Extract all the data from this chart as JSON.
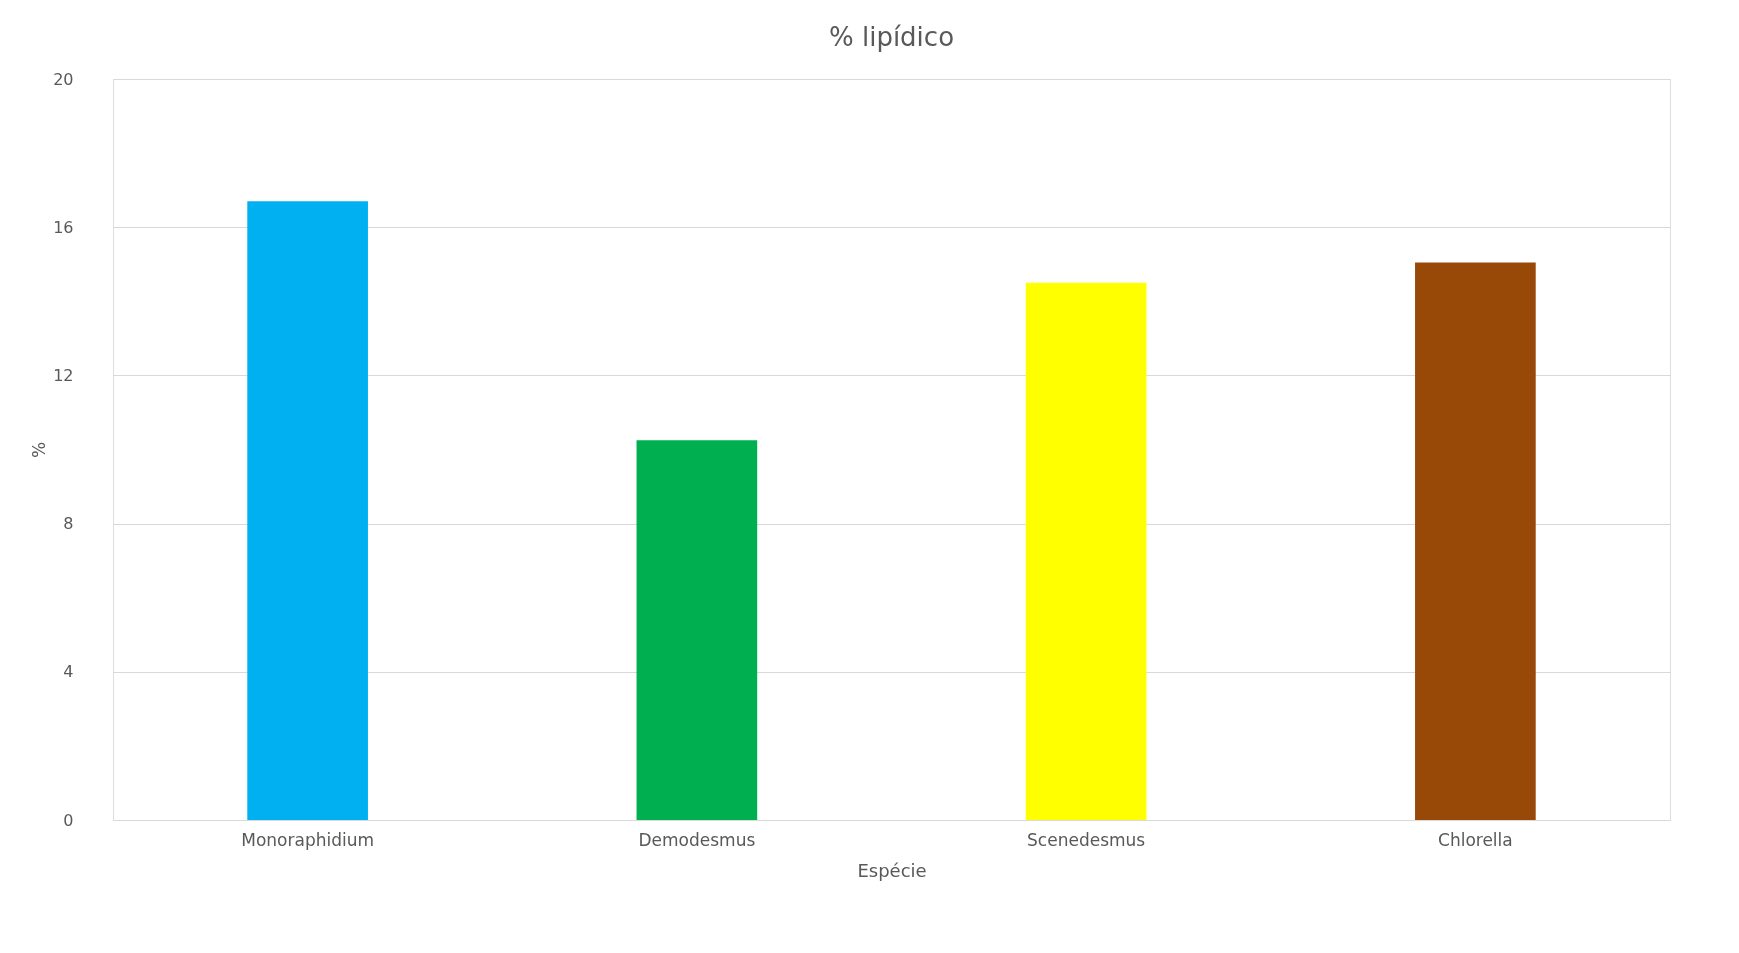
{
  "chart_data": {
    "type": "bar",
    "title": "% lipídico",
    "xlabel": "Espécie",
    "ylabel": "%",
    "categories": [
      "Monoraphidium",
      "Demodesmus",
      "Scenedesmus",
      "Chlorella"
    ],
    "values": [
      16.7,
      10.25,
      14.5,
      15.05
    ],
    "colors": [
      "#00b0f0",
      "#00b050",
      "#ffff00",
      "#984807"
    ],
    "ylim": [
      0,
      20
    ],
    "yticks": [
      0,
      4,
      8,
      12,
      16,
      20
    ],
    "grid": "y",
    "legend": false
  }
}
